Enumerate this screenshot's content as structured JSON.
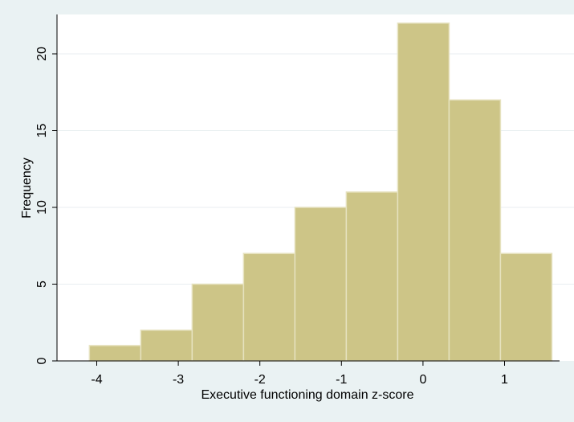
{
  "chart_data": {
    "type": "bar",
    "subtype": "histogram",
    "title": "",
    "xlabel": "Executive functioning domain z-score",
    "ylabel": "Frequency",
    "bins": [
      {
        "x0": -4.09,
        "x1": -3.46,
        "value": 1
      },
      {
        "x0": -3.46,
        "x1": -2.83,
        "value": 2
      },
      {
        "x0": -2.83,
        "x1": -2.2,
        "value": 5
      },
      {
        "x0": -2.2,
        "x1": -1.57,
        "value": 7
      },
      {
        "x0": -1.57,
        "x1": -0.94,
        "value": 10
      },
      {
        "x0": -0.94,
        "x1": -0.31,
        "value": 11
      },
      {
        "x0": -0.31,
        "x1": 0.32,
        "value": 22
      },
      {
        "x0": 0.32,
        "x1": 0.95,
        "value": 17
      },
      {
        "x0": 0.95,
        "x1": 1.58,
        "value": 7
      }
    ],
    "xticks": [
      "-4",
      "-3",
      "-2",
      "-1",
      "0",
      "1"
    ],
    "xtick_values": [
      -4,
      -3,
      -2,
      -1,
      0,
      1
    ],
    "yticks": [
      "0",
      "5",
      "10",
      "15",
      "20"
    ],
    "ytick_values": [
      0,
      5,
      10,
      15,
      20
    ],
    "xlim": [
      -4.5,
      1.7
    ],
    "ylim": [
      0,
      22.5
    ],
    "grid": true,
    "legend": "none",
    "colors": {
      "bar_fill": "#cdc587",
      "bar_stroke": "#e6e2bf",
      "plot_background": "#ffffff",
      "outer_background": "#eaf2f3",
      "gridline": "#e8eef0",
      "axis": "#000000"
    }
  }
}
